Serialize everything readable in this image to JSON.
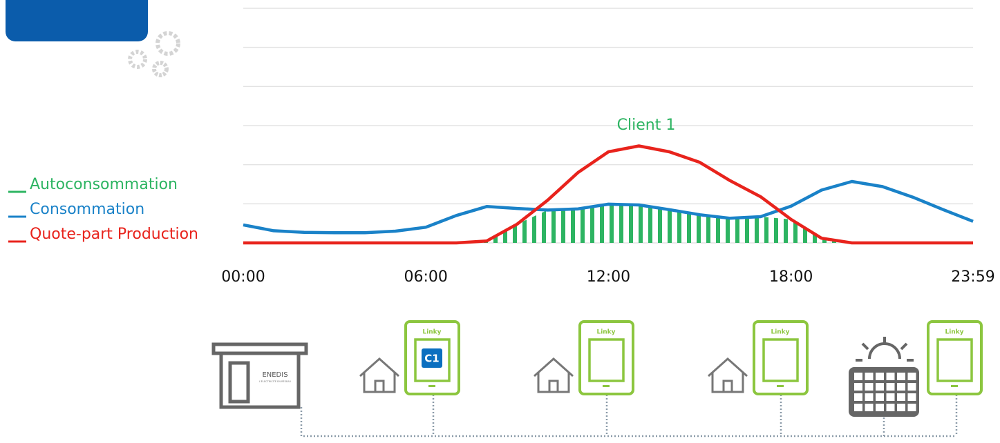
{
  "chart_data": {
    "type": "line",
    "annotation": "Client 1",
    "x": [
      0,
      1,
      2,
      3,
      4,
      5,
      6,
      7,
      8,
      9,
      10,
      11,
      12,
      13,
      14,
      15,
      16,
      17,
      18,
      19,
      20,
      21,
      22,
      23,
      23.98
    ],
    "xlim": [
      0,
      23.98
    ],
    "xticks": [
      {
        "value": 0,
        "label": "00:00"
      },
      {
        "value": 6,
        "label": "06:00"
      },
      {
        "value": 12,
        "label": "12:00"
      },
      {
        "value": 18,
        "label": "18:00"
      },
      {
        "value": 23.98,
        "label": "23:59"
      }
    ],
    "ylim": [
      0,
      6
    ],
    "yticks": [
      0,
      1,
      2,
      3,
      4,
      5,
      6
    ],
    "grid": true,
    "series": [
      {
        "name": "Autoconsommation",
        "color": "#2db462",
        "style": "hatched",
        "values": [
          0,
          0,
          0,
          0,
          0,
          0,
          0,
          0,
          0.05,
          0.48,
          0.84,
          0.87,
          0.99,
          0.97,
          0.85,
          0.72,
          0.63,
          0.67,
          0.6,
          0.12,
          0,
          0,
          0,
          0,
          0
        ]
      },
      {
        "name": "Consommation",
        "color": "#1a82c8",
        "values": [
          0.46,
          0.31,
          0.27,
          0.26,
          0.26,
          0.3,
          0.4,
          0.7,
          0.93,
          0.88,
          0.84,
          0.87,
          0.99,
          0.97,
          0.85,
          0.72,
          0.63,
          0.67,
          0.94,
          1.35,
          1.57,
          1.44,
          1.17,
          0.85,
          0.55
        ]
      },
      {
        "name": "Quote-part Production",
        "color": "#e8231c",
        "values": [
          0,
          0,
          0,
          0,
          0,
          0,
          0,
          0,
          0.05,
          0.48,
          1.09,
          1.8,
          2.33,
          2.48,
          2.33,
          2.06,
          1.59,
          1.18,
          0.6,
          0.12,
          0,
          0,
          0,
          0,
          0
        ]
      }
    ]
  },
  "diagram": {
    "enedis": {
      "logo": "ENEDIS",
      "tagline": "L'ÉLECTRICITÉ EN RÉSEAU"
    },
    "meters": [
      {
        "label": "Linky",
        "client": "C1"
      },
      {
        "label": "Linky"
      },
      {
        "label": "Linky"
      },
      {
        "label": "Linky"
      }
    ]
  }
}
